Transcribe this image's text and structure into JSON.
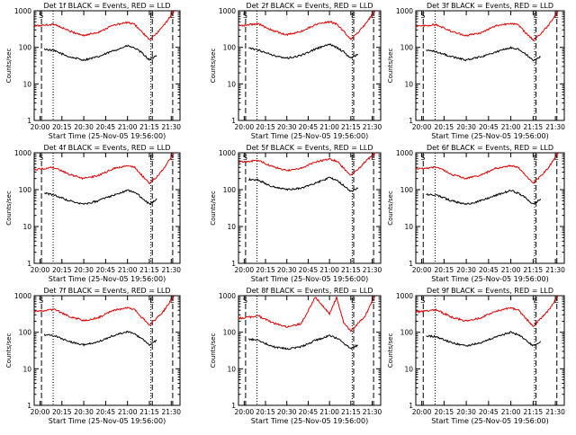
{
  "colors": {
    "events": "#000000",
    "lld": "#e00000",
    "background": "#ffffff"
  },
  "shared": {
    "ylabel": "Counts/sec",
    "xlabel": "Start Time (25-Nov-05 19:56:00)",
    "x_tick_labels": [
      "20:00",
      "20:15",
      "20:30",
      "20:45",
      "21:00",
      "21:15",
      "21:30"
    ],
    "y_tick_labels": [
      "1",
      "10",
      "100",
      "1000"
    ],
    "y_scale": "log",
    "marker_labels": [
      "S",
      "E",
      "E"
    ]
  },
  "chart_data": [
    {
      "type": "line",
      "title": "Det 1f BLACK = Events, RED = LLD",
      "ylim": [
        1,
        1000
      ],
      "series": [
        {
          "name": "Events",
          "color": "#000000",
          "x": [
            "20:03",
            "20:10",
            "20:20",
            "20:30",
            "20:40",
            "20:50",
            "21:00",
            "21:05",
            "21:10",
            "21:15",
            "21:20"
          ],
          "values": [
            90,
            80,
            55,
            45,
            55,
            80,
            110,
            95,
            70,
            45,
            60
          ]
        },
        {
          "name": "LLD",
          "color": "#e00000",
          "x": [
            "19:56",
            "20:10",
            "20:20",
            "20:30",
            "20:40",
            "20:50",
            "21:00",
            "21:05",
            "21:10",
            "21:15",
            "21:20",
            "21:25",
            "21:32"
          ],
          "values": [
            380,
            430,
            280,
            210,
            260,
            400,
            480,
            420,
            260,
            160,
            240,
            400,
            1000
          ]
        }
      ]
    },
    {
      "type": "line",
      "title": "Det 2f BLACK = Events, RED = LLD",
      "ylim": [
        1,
        1000
      ],
      "series": [
        {
          "name": "Events",
          "color": "#000000",
          "x": [
            "20:03",
            "20:10",
            "20:20",
            "20:30",
            "20:40",
            "20:50",
            "21:00",
            "21:05",
            "21:10",
            "21:15",
            "21:20"
          ],
          "values": [
            95,
            85,
            60,
            50,
            60,
            90,
            120,
            100,
            75,
            50,
            65
          ]
        },
        {
          "name": "LLD",
          "color": "#e00000",
          "x": [
            "19:56",
            "20:10",
            "20:20",
            "20:30",
            "20:40",
            "20:50",
            "21:00",
            "21:05",
            "21:10",
            "21:15",
            "21:20",
            "21:25",
            "21:32"
          ],
          "values": [
            390,
            440,
            290,
            220,
            270,
            420,
            500,
            440,
            270,
            170,
            250,
            420,
            1000
          ]
        }
      ]
    },
    {
      "type": "line",
      "title": "Det 3f BLACK = Events, RED = LLD",
      "ylim": [
        1,
        1000
      ],
      "series": [
        {
          "name": "Events",
          "color": "#000000",
          "x": [
            "20:03",
            "20:10",
            "20:20",
            "20:30",
            "20:40",
            "20:50",
            "21:00",
            "21:05",
            "21:10",
            "21:15",
            "21:20"
          ],
          "values": [
            85,
            75,
            55,
            45,
            55,
            75,
            100,
            90,
            65,
            45,
            55
          ]
        },
        {
          "name": "LLD",
          "color": "#e00000",
          "x": [
            "19:56",
            "20:10",
            "20:20",
            "20:30",
            "20:40",
            "20:50",
            "21:00",
            "21:05",
            "21:10",
            "21:15",
            "21:20",
            "21:25",
            "21:32"
          ],
          "values": [
            370,
            420,
            270,
            210,
            250,
            390,
            460,
            410,
            250,
            160,
            230,
            390,
            1000
          ]
        }
      ]
    },
    {
      "type": "line",
      "title": "Det 4f BLACK = Events, RED = LLD",
      "ylim": [
        1,
        1000
      ],
      "series": [
        {
          "name": "Events",
          "color": "#000000",
          "x": [
            "20:03",
            "20:10",
            "20:20",
            "20:30",
            "20:40",
            "20:50",
            "21:00",
            "21:05",
            "21:10",
            "21:15",
            "21:20"
          ],
          "values": [
            80,
            70,
            50,
            40,
            50,
            70,
            95,
            85,
            60,
            40,
            55
          ]
        },
        {
          "name": "LLD",
          "color": "#e00000",
          "x": [
            "19:56",
            "20:10",
            "20:20",
            "20:30",
            "20:40",
            "20:50",
            "21:00",
            "21:05",
            "21:10",
            "21:15",
            "21:20",
            "21:25",
            "21:32"
          ],
          "values": [
            350,
            400,
            260,
            200,
            240,
            370,
            450,
            400,
            240,
            150,
            220,
            380,
            1000
          ]
        }
      ]
    },
    {
      "type": "line",
      "title": "Det 5f BLACK = Events, RED = LLD",
      "ylim": [
        1,
        1000
      ],
      "series": [
        {
          "name": "Events",
          "color": "#000000",
          "x": [
            "20:03",
            "20:10",
            "20:20",
            "20:30",
            "20:40",
            "20:50",
            "21:00",
            "21:05",
            "21:10",
            "21:15",
            "21:20"
          ],
          "values": [
            190,
            180,
            120,
            100,
            110,
            150,
            210,
            180,
            130,
            90,
            110
          ]
        },
        {
          "name": "LLD",
          "color": "#e00000",
          "x": [
            "19:56",
            "20:10",
            "20:20",
            "20:30",
            "20:40",
            "20:50",
            "21:00",
            "21:05",
            "21:10",
            "21:15",
            "21:20",
            "21:25",
            "21:32"
          ],
          "values": [
            560,
            620,
            420,
            330,
            380,
            560,
            680,
            600,
            380,
            250,
            350,
            560,
            1000
          ]
        }
      ]
    },
    {
      "type": "line",
      "title": "Det 6f BLACK = Events, RED = LLD",
      "ylim": [
        1,
        1000
      ],
      "series": [
        {
          "name": "Events",
          "color": "#000000",
          "x": [
            "20:03",
            "20:10",
            "20:20",
            "20:30",
            "20:40",
            "20:50",
            "21:00",
            "21:05",
            "21:10",
            "21:15",
            "21:20"
          ],
          "values": [
            75,
            70,
            50,
            40,
            50,
            70,
            95,
            80,
            60,
            40,
            55
          ]
        },
        {
          "name": "LLD",
          "color": "#e00000",
          "x": [
            "19:56",
            "20:10",
            "20:20",
            "20:30",
            "20:40",
            "20:50",
            "21:00",
            "21:05",
            "21:10",
            "21:15",
            "21:20",
            "21:25",
            "21:32"
          ],
          "values": [
            360,
            410,
            260,
            200,
            250,
            380,
            450,
            400,
            240,
            150,
            230,
            380,
            1000
          ]
        }
      ]
    },
    {
      "type": "line",
      "title": "Det 7f BLACK = Events, RED = LLD",
      "ylim": [
        1,
        1000
      ],
      "series": [
        {
          "name": "Events",
          "color": "#000000",
          "x": [
            "20:03",
            "20:10",
            "20:20",
            "20:30",
            "20:40",
            "20:50",
            "21:00",
            "21:05",
            "21:10",
            "21:15",
            "21:20"
          ],
          "values": [
            85,
            80,
            55,
            45,
            55,
            80,
            105,
            90,
            65,
            45,
            60
          ]
        },
        {
          "name": "LLD",
          "color": "#e00000",
          "x": [
            "19:56",
            "20:10",
            "20:20",
            "20:30",
            "20:40",
            "20:50",
            "21:00",
            "21:05",
            "21:10",
            "21:15",
            "21:20",
            "21:25",
            "21:32"
          ],
          "values": [
            370,
            420,
            270,
            210,
            250,
            390,
            470,
            410,
            250,
            160,
            240,
            390,
            1000
          ]
        }
      ]
    },
    {
      "type": "line",
      "title": "Det 8f BLACK = Events, RED = LLD",
      "ylim": [
        1,
        1000
      ],
      "series": [
        {
          "name": "Events",
          "color": "#000000",
          "x": [
            "20:03",
            "20:10",
            "20:20",
            "20:30",
            "20:40",
            "20:50",
            "21:00",
            "21:05",
            "21:10",
            "21:15",
            "21:20"
          ],
          "values": [
            65,
            60,
            40,
            35,
            40,
            60,
            80,
            70,
            50,
            35,
            45
          ]
        },
        {
          "name": "LLD",
          "color": "#e00000",
          "x": [
            "19:56",
            "20:10",
            "20:20",
            "20:30",
            "20:40",
            "20:50",
            "21:00",
            "21:05",
            "21:10",
            "21:15",
            "21:20",
            "21:25",
            "21:32"
          ],
          "values": [
            240,
            280,
            180,
            140,
            170,
            900,
            320,
            900,
            180,
            110,
            170,
            280,
            1000
          ]
        }
      ]
    },
    {
      "type": "line",
      "title": "Det 9f BLACK = Events, RED = LLD",
      "ylim": [
        1,
        1000
      ],
      "series": [
        {
          "name": "Events",
          "color": "#000000",
          "x": [
            "20:03",
            "20:10",
            "20:20",
            "20:30",
            "20:40",
            "20:50",
            "21:00",
            "21:05",
            "21:10",
            "21:15",
            "21:20"
          ],
          "values": [
            80,
            75,
            52,
            42,
            52,
            75,
            100,
            85,
            62,
            42,
            55
          ]
        },
        {
          "name": "LLD",
          "color": "#e00000",
          "x": [
            "19:56",
            "20:10",
            "20:20",
            "20:30",
            "20:40",
            "20:50",
            "21:00",
            "21:05",
            "21:10",
            "21:15",
            "21:20",
            "21:25",
            "21:32"
          ],
          "values": [
            360,
            410,
            260,
            200,
            250,
            380,
            460,
            400,
            240,
            150,
            230,
            380,
            1000
          ]
        }
      ]
    }
  ]
}
